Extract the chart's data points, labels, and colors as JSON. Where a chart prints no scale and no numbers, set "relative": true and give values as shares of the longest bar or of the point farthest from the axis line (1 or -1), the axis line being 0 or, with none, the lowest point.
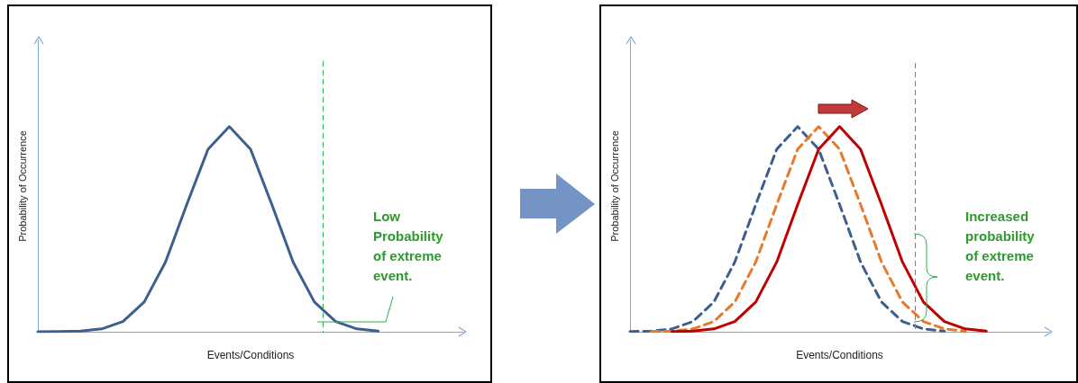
{
  "chart_data": [
    {
      "type": "line",
      "relative": true,
      "xlabel": "Events/Conditions",
      "ylabel": "Probability of Occurrence",
      "marker": "none",
      "categories": [
        null,
        null,
        null,
        null,
        null,
        null,
        null,
        null,
        null,
        null,
        null,
        null,
        null,
        null,
        null,
        null,
        null,
        null,
        null,
        null,
        null
      ],
      "series": [
        {
          "color": "#3d5f8e",
          "line_style": "solid",
          "values": [
            0,
            0.001,
            0.003,
            0.014,
            0.05,
            0.145,
            0.34,
            0.62,
            0.89,
            1,
            0.89,
            0.62,
            0.34,
            0.145,
            0.05,
            0.014,
            0.003,
            null,
            null,
            null,
            null
          ]
        }
      ],
      "annotations": [
        "Low Probability of extreme event."
      ]
    },
    {
      "type": "line",
      "relative": true,
      "xlabel": "Events/Conditions",
      "ylabel": "Probability of Occurrence",
      "marker": "none",
      "categories": [
        null,
        null,
        null,
        null,
        null,
        null,
        null,
        null,
        null,
        null,
        null,
        null,
        null,
        null,
        null,
        null,
        null,
        null,
        null,
        null,
        null
      ],
      "series": [
        {
          "color": "#3d5f8e",
          "line_style": "dashed",
          "values": [
            0.001,
            0.003,
            0.014,
            0.05,
            0.145,
            0.34,
            0.62,
            0.89,
            1,
            0.89,
            0.62,
            0.34,
            0.145,
            0.05,
            0.014,
            0.003,
            null,
            null,
            null,
            null,
            null
          ]
        },
        {
          "color": "#e8782a",
          "line_style": "dashed",
          "values": [
            null,
            0.001,
            0.003,
            0.014,
            0.05,
            0.145,
            0.34,
            0.62,
            0.89,
            1,
            0.89,
            0.62,
            0.34,
            0.145,
            0.05,
            0.014,
            0.003,
            null,
            null,
            null,
            null
          ]
        },
        {
          "color": "#c00000",
          "line_style": "solid",
          "values": [
            null,
            null,
            0.001,
            0.003,
            0.014,
            0.05,
            0.145,
            0.34,
            0.62,
            0.89,
            1,
            0.89,
            0.62,
            0.34,
            0.145,
            0.05,
            0.014,
            0.003,
            null,
            null,
            null
          ]
        }
      ],
      "annotations": [
        "Increased probability of extreme event."
      ]
    }
  ]
}
